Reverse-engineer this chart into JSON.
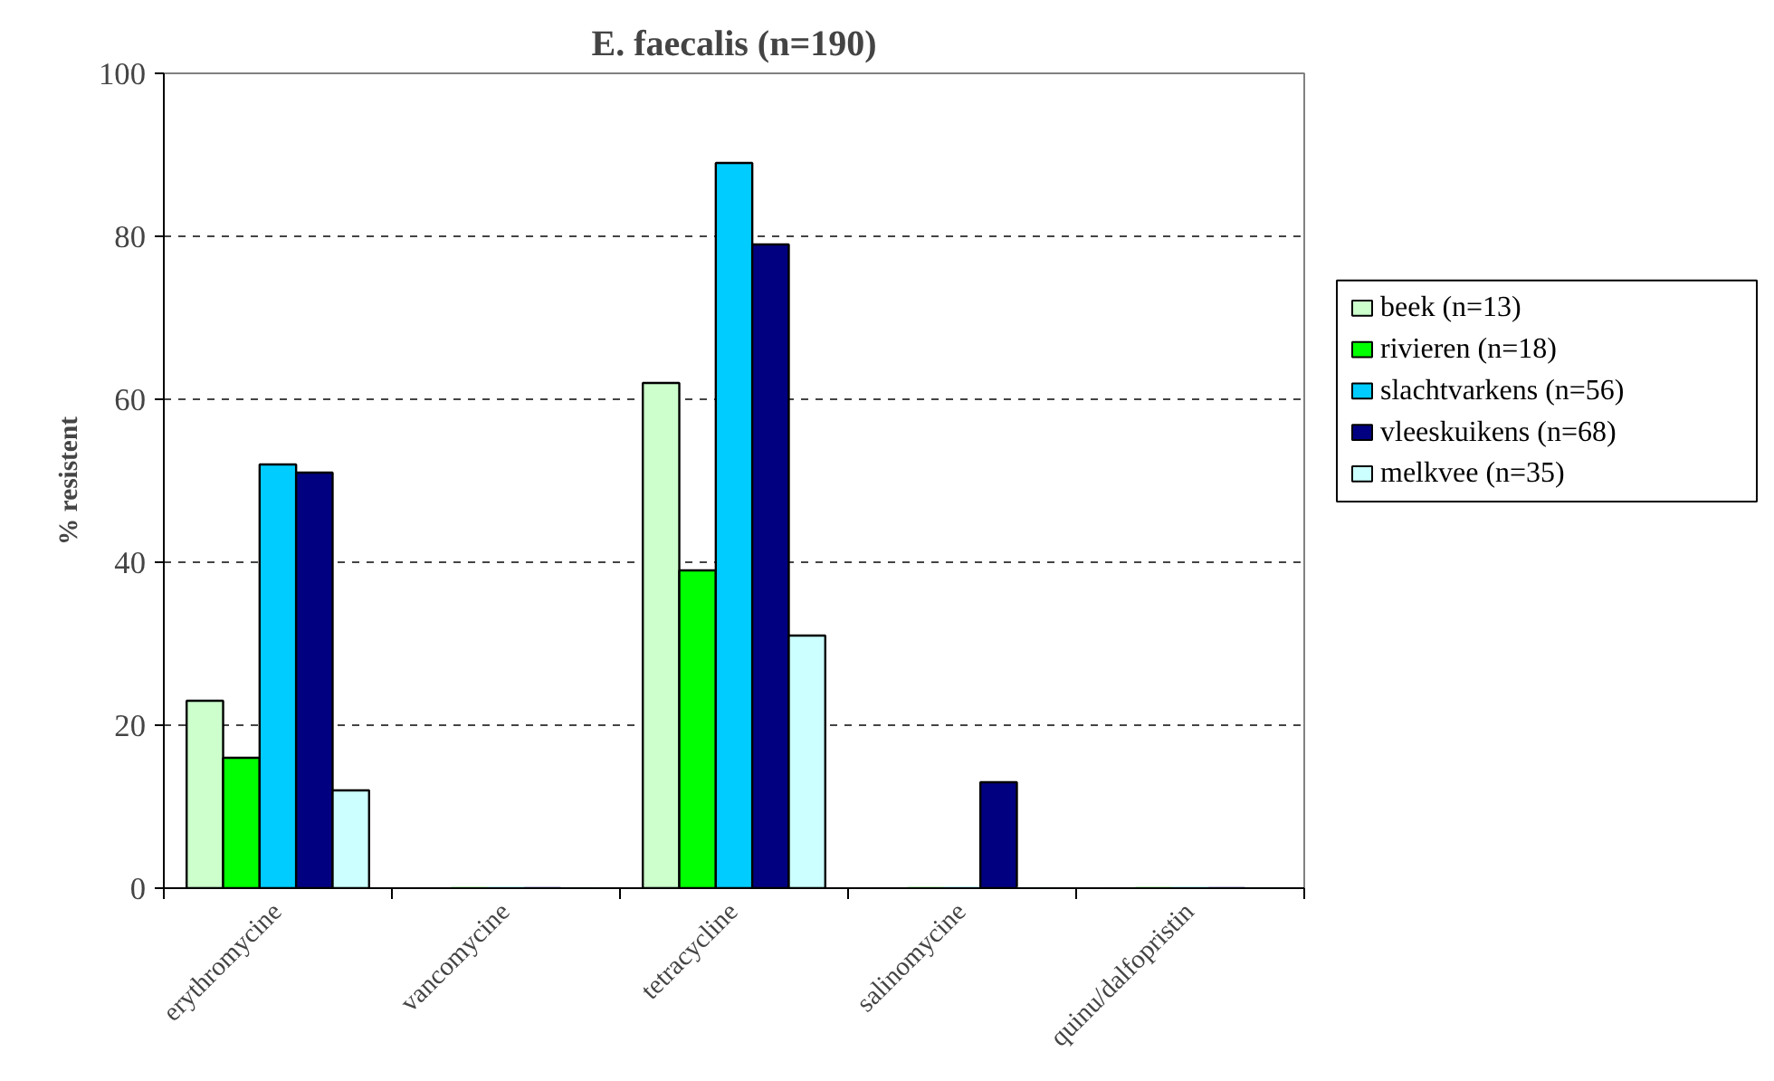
{
  "chart_data": {
    "type": "bar",
    "title": "E. faecalis (n=190)",
    "ylabel": "% resistent",
    "categories": [
      "erythromycine",
      "vancomycine",
      "tetracycline",
      "salinomycine",
      "quinu/dalfopristin"
    ],
    "series": [
      {
        "name": "beek (n=13)",
        "color": "#ccffcc",
        "values": [
          23,
          0,
          62,
          0,
          0
        ]
      },
      {
        "name": "rivieren (n=18)",
        "color": "#00ff00",
        "values": [
          16,
          0,
          39,
          0,
          0
        ]
      },
      {
        "name": "slachtvarkens (n=56)",
        "color": "#00ccff",
        "values": [
          52,
          0,
          89,
          0,
          0
        ]
      },
      {
        "name": "vleeskuikens (n=68)",
        "color": "#000080",
        "values": [
          51,
          0,
          79,
          13,
          0
        ]
      },
      {
        "name": "melkvee (n=35)",
        "color": "#ccffff",
        "values": [
          12,
          0,
          31,
          0,
          0
        ]
      }
    ],
    "ylim": [
      0,
      100
    ],
    "yticks": [
      0,
      20,
      40,
      60,
      80,
      100
    ],
    "grid": "y",
    "legend": "right"
  }
}
